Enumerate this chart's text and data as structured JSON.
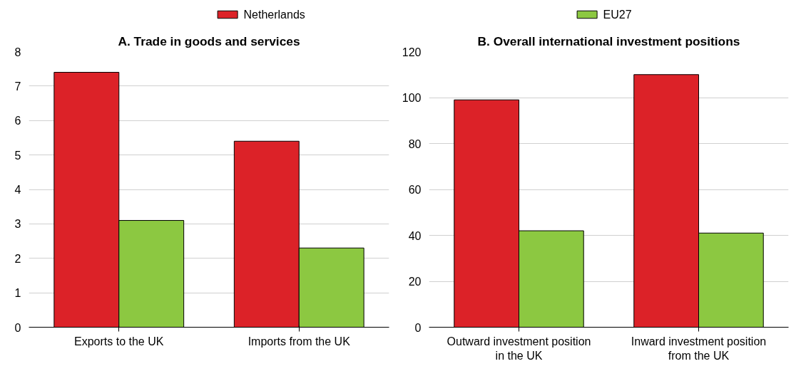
{
  "chart_data": [
    {
      "type": "bar",
      "title": "A. Trade in goods and services",
      "categories": [
        "Exports to the UK",
        "Imports from the UK"
      ],
      "series": [
        {
          "name": "Netherlands",
          "color": "#dc2228",
          "values": [
            7.4,
            5.4
          ]
        },
        {
          "name": "EU27",
          "color": "#8cc841",
          "values": [
            3.1,
            2.3
          ]
        }
      ],
      "ylim": [
        0,
        8
      ],
      "yticks": [
        0,
        1,
        2,
        3,
        4,
        5,
        6,
        7,
        8
      ],
      "grid": "y",
      "legend": "top"
    },
    {
      "type": "bar",
      "title": "B. Overall international investment positions",
      "categories": [
        "Outward investment position in the UK",
        "Inward investment position from the UK"
      ],
      "series": [
        {
          "color": "#dc2228",
          "values": [
            99,
            110
          ]
        },
        {
          "color": "#8cc841",
          "values": [
            42,
            41
          ]
        }
      ],
      "ylim": [
        0,
        120
      ],
      "yticks": [
        0,
        20,
        40,
        60,
        80,
        100,
        120
      ],
      "grid": "y"
    }
  ]
}
